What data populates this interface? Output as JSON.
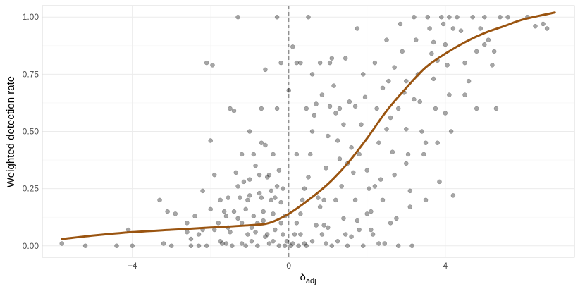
{
  "colors": {
    "background": "#ffffff",
    "panel_border": "#d9d9d9",
    "grid_major": "#ebebeb",
    "grid_minor": "#f5f5f5",
    "points": "#000000",
    "curve": "#9a5410",
    "reference_line": "#808080",
    "tick_text": "#4d4d4d"
  },
  "chart_data": {
    "type": "scatter",
    "title": "",
    "xlabel_main": "δ",
    "xlabel_sub": "adj",
    "ylabel": "Weighted detection rate",
    "xlim": [
      -6.3,
      7.3
    ],
    "ylim": [
      -0.05,
      1.05
    ],
    "x_ticks": [
      -4,
      0,
      4
    ],
    "x_tick_labels": [
      "−4",
      "0",
      "4"
    ],
    "y_ticks": [
      0,
      0.25,
      0.5,
      0.75,
      1
    ],
    "y_tick_labels": [
      "0.00",
      "0.25",
      "0.50",
      "0.75",
      "1.00"
    ],
    "grid": true,
    "reference_line": {
      "x": 0,
      "style": "dashed"
    },
    "scatter": {
      "opacity": 0.35,
      "points": [
        [
          -5.8,
          0.01
        ],
        [
          -5.2,
          0.0
        ],
        [
          -4.4,
          0.0
        ],
        [
          -4.0,
          0.0
        ],
        [
          -4.1,
          0.07
        ],
        [
          -3.2,
          0.01
        ],
        [
          -3.0,
          0.0
        ],
        [
          -3.3,
          0.2
        ],
        [
          -3.1,
          0.15
        ],
        [
          -2.9,
          0.14
        ],
        [
          -2.6,
          0.1
        ],
        [
          -2.4,
          0.13
        ],
        [
          -2.5,
          0.0
        ],
        [
          -2.5,
          0.03
        ],
        [
          -2.3,
          0.05
        ],
        [
          -2.2,
          0.07
        ],
        [
          -2.2,
          0.24
        ],
        [
          -2.0,
          0.46
        ],
        [
          -1.9,
          0.31
        ],
        [
          -2.1,
          0.8
        ],
        [
          -1.95,
          0.79
        ],
        [
          -2.1,
          0.0
        ],
        [
          -1.8,
          0.1
        ],
        [
          -1.75,
          0.2
        ],
        [
          -1.7,
          0.01
        ],
        [
          -1.65,
          0.15
        ],
        [
          -1.6,
          0.01
        ],
        [
          -1.55,
          0.21
        ],
        [
          -1.5,
          0.6
        ],
        [
          -1.4,
          0.59
        ],
        [
          -1.45,
          0.0
        ],
        [
          -1.35,
          0.32
        ],
        [
          -1.3,
          0.12
        ],
        [
          -1.2,
          0.1
        ],
        [
          -1.1,
          0.0
        ],
        [
          -1.25,
          0.21
        ],
        [
          -1.15,
          0.28
        ],
        [
          -1.05,
          0.05
        ],
        [
          -1.0,
          0.5
        ],
        [
          -0.95,
          0.02
        ],
        [
          -0.9,
          0.4
        ],
        [
          -0.85,
          0.35
        ],
        [
          -0.8,
          0.0
        ],
        [
          -0.75,
          0.23
        ],
        [
          -0.7,
          0.45
        ],
        [
          -0.65,
          0.15
        ],
        [
          -0.6,
          0.77
        ],
        [
          -0.55,
          0.3
        ],
        [
          -0.5,
          0.01
        ],
        [
          -0.45,
          0.2
        ],
        [
          -0.4,
          0.4
        ],
        [
          -0.35,
          0.07
        ],
        [
          -0.3,
          0.6
        ],
        [
          -0.25,
          0.0
        ],
        [
          -0.2,
          0.1
        ],
        [
          -0.15,
          0.25
        ],
        [
          -0.1,
          0.0
        ],
        [
          -0.05,
          0.02
        ],
        [
          -0.35,
          0.21
        ],
        [
          -0.5,
          0.31
        ],
        [
          -0.7,
          0.21
        ],
        [
          -0.9,
          0.13
        ],
        [
          -1.1,
          0.16
        ],
        [
          -1.3,
          0.26
        ],
        [
          -1.5,
          0.06
        ],
        [
          -0.6,
          0.04
        ],
        [
          -0.8,
          0.1
        ],
        [
          -0.4,
          0.14
        ],
        [
          -0.2,
          0.19
        ],
        [
          -1.6,
          0.13
        ],
        [
          -1.9,
          0.07
        ],
        [
          -2.3,
          0.0
        ],
        [
          -0.55,
          0.05
        ],
        [
          -1.0,
          0.29
        ],
        [
          -1.2,
          0.4
        ],
        [
          -0.3,
          0.26
        ],
        [
          -0.7,
          0.6
        ],
        [
          -0.3,
          1.0
        ],
        [
          -1.3,
          1.0
        ],
        [
          -0.2,
          0.8
        ],
        [
          -0.6,
          0.44
        ],
        [
          -1.0,
          0.22
        ],
        [
          -0.15,
          0.05
        ],
        [
          -2.6,
          0.06
        ],
        [
          -2.0,
          0.16
        ],
        [
          -1.55,
          0.08
        ],
        [
          -0.85,
          0.06
        ],
        [
          -0.45,
          0.24
        ],
        [
          -0.25,
          0.33
        ],
        [
          -1.75,
          0.02
        ],
        [
          -1.2,
          0.01
        ],
        [
          -0.95,
          0.08
        ],
        [
          -0.65,
          0.11
        ],
        [
          -0.4,
          0.02
        ],
        [
          -0.1,
          0.13
        ],
        [
          -1.4,
          0.15
        ],
        [
          -1.05,
          0.2
        ],
        [
          -0.75,
          0.31
        ],
        [
          0.0,
          0.68
        ],
        [
          0.1,
          0.87
        ],
        [
          0.2,
          0.8
        ],
        [
          0.3,
          0.8
        ],
        [
          0.5,
          1.0
        ],
        [
          0.6,
          0.75
        ],
        [
          0.8,
          0.8
        ],
        [
          0.05,
          0.0
        ],
        [
          0.1,
          0.01
        ],
        [
          0.15,
          0.05
        ],
        [
          0.2,
          0.1
        ],
        [
          0.25,
          0.0
        ],
        [
          0.3,
          0.14
        ],
        [
          0.35,
          0.2
        ],
        [
          0.4,
          0.25
        ],
        [
          0.45,
          0.0
        ],
        [
          0.5,
          0.3
        ],
        [
          0.55,
          0.4
        ],
        [
          0.6,
          0.5
        ],
        [
          0.65,
          0.57
        ],
        [
          0.7,
          0.62
        ],
        [
          0.75,
          0.21
        ],
        [
          0.8,
          0.17
        ],
        [
          0.85,
          0.05
        ],
        [
          0.9,
          0.2
        ],
        [
          0.95,
          0.34
        ],
        [
          1.0,
          0.48
        ],
        [
          1.05,
          0.61
        ],
        [
          1.1,
          0.82
        ],
        [
          1.15,
          0.7
        ],
        [
          1.2,
          0.58
        ],
        [
          1.25,
          0.46
        ],
        [
          1.3,
          0.38
        ],
        [
          1.35,
          0.26
        ],
        [
          1.4,
          0.12
        ],
        [
          1.45,
          0.05
        ],
        [
          1.5,
          0.0
        ],
        [
          1.55,
          0.63
        ],
        [
          1.6,
          0.43
        ],
        [
          1.65,
          0.32
        ],
        [
          1.7,
          0.2
        ],
        [
          1.75,
          0.11
        ],
        [
          1.8,
          0.07
        ],
        [
          1.85,
          0.53
        ],
        [
          1.9,
          0.75
        ],
        [
          1.95,
          0.65
        ],
        [
          2.0,
          0.33
        ],
        [
          2.05,
          0.25
        ],
        [
          2.1,
          0.15
        ],
        [
          2.15,
          0.05
        ],
        [
          2.2,
          0.8
        ],
        [
          2.25,
          0.6
        ],
        [
          2.3,
          0.45
        ],
        [
          2.35,
          0.29
        ],
        [
          2.4,
          0.2
        ],
        [
          2.45,
          0.01
        ],
        [
          2.5,
          0.9
        ],
        [
          2.55,
          0.72
        ],
        [
          2.6,
          0.56
        ],
        [
          2.65,
          0.41
        ],
        [
          2.7,
          0.31
        ],
        [
          2.75,
          0.12
        ],
        [
          2.8,
          0.0
        ],
        [
          2.85,
          0.97
        ],
        [
          2.9,
          0.85
        ],
        [
          2.95,
          0.67
        ],
        [
          3.0,
          0.51
        ],
        [
          3.05,
          0.4
        ],
        [
          3.1,
          0.24
        ],
        [
          3.15,
          0.0
        ],
        [
          3.2,
          1.0
        ],
        [
          3.25,
          0.9
        ],
        [
          3.3,
          0.75
        ],
        [
          3.35,
          0.63
        ],
        [
          3.4,
          0.5
        ],
        [
          3.45,
          0.4
        ],
        [
          3.5,
          0.2
        ],
        [
          3.55,
          1.0
        ],
        [
          3.6,
          0.95
        ],
        [
          3.65,
          0.84
        ],
        [
          3.7,
          0.73
        ],
        [
          3.75,
          0.6
        ],
        [
          3.8,
          0.45
        ],
        [
          3.85,
          0.28
        ],
        [
          3.9,
          1.0
        ],
        [
          3.95,
          0.97
        ],
        [
          4.0,
          0.88
        ],
        [
          4.05,
          0.79
        ],
        [
          4.1,
          0.66
        ],
        [
          4.15,
          0.5
        ],
        [
          4.2,
          0.22
        ],
        [
          4.3,
          1.0
        ],
        [
          4.4,
          0.94
        ],
        [
          4.5,
          0.8
        ],
        [
          4.6,
          0.72
        ],
        [
          4.7,
          1.0
        ],
        [
          4.8,
          0.85
        ],
        [
          4.9,
          0.95
        ],
        [
          5.0,
          0.88
        ],
        [
          5.1,
          0.9
        ],
        [
          5.2,
          0.79
        ],
        [
          5.3,
          0.6
        ],
        [
          5.4,
          1.0
        ],
        [
          6.3,
          0.96
        ],
        [
          6.1,
          1.0
        ],
        [
          6.5,
          0.97
        ],
        [
          6.6,
          0.95
        ],
        [
          4.8,
          0.6
        ],
        [
          5.25,
          0.85
        ],
        [
          5.6,
          1.0
        ],
        [
          4.0,
          0.58
        ],
        [
          3.0,
          0.36
        ],
        [
          2.0,
          0.14
        ],
        [
          1.0,
          0.08
        ],
        [
          0.6,
          0.02
        ],
        [
          0.3,
          0.05
        ],
        [
          2.5,
          0.51
        ],
        [
          1.5,
          0.36
        ],
        [
          0.9,
          0.09
        ],
        [
          3.5,
          0.45
        ],
        [
          4.5,
          0.66
        ],
        [
          2.8,
          0.6
        ],
        [
          1.8,
          0.4
        ],
        [
          1.2,
          0.2
        ],
        [
          0.7,
          0.09
        ],
        [
          0.4,
          0.01
        ],
        [
          2.2,
          0.26
        ],
        [
          1.4,
          0.53
        ],
        [
          2.7,
          0.78
        ],
        [
          3.2,
          0.64
        ],
        [
          3.8,
          0.81
        ],
        [
          4.2,
          0.95
        ],
        [
          5.0,
          1.0
        ],
        [
          1.1,
          0.0
        ],
        [
          1.9,
          0.0
        ],
        [
          2.3,
          0.01
        ],
        [
          0.95,
          0.01
        ],
        [
          1.25,
          0.02
        ],
        [
          1.6,
          0.04
        ],
        [
          2.1,
          0.07
        ],
        [
          2.6,
          0.1
        ],
        [
          3.1,
          0.17
        ],
        [
          1.7,
          0.61
        ],
        [
          2.4,
          0.69
        ],
        [
          3.0,
          0.72
        ],
        [
          3.7,
          0.89
        ],
        [
          4.1,
          1.0
        ],
        [
          0.2,
          0.4
        ],
        [
          0.45,
          0.6
        ],
        [
          0.85,
          0.66
        ],
        [
          1.3,
          0.6
        ],
        [
          1.05,
          0.8
        ],
        [
          1.45,
          0.82
        ],
        [
          1.75,
          0.95
        ]
      ]
    },
    "trend_curve": {
      "name": "",
      "points": [
        [
          -5.8,
          0.03
        ],
        [
          -5.0,
          0.045
        ],
        [
          -4.0,
          0.06
        ],
        [
          -3.0,
          0.07
        ],
        [
          -2.0,
          0.08
        ],
        [
          -1.0,
          0.09
        ],
        [
          -0.5,
          0.1
        ],
        [
          0.0,
          0.14
        ],
        [
          0.5,
          0.2
        ],
        [
          1.0,
          0.27
        ],
        [
          1.5,
          0.36
        ],
        [
          2.0,
          0.47
        ],
        [
          2.5,
          0.59
        ],
        [
          3.0,
          0.69
        ],
        [
          3.5,
          0.78
        ],
        [
          4.0,
          0.84
        ],
        [
          4.5,
          0.89
        ],
        [
          5.0,
          0.93
        ],
        [
          5.5,
          0.96
        ],
        [
          6.0,
          0.99
        ],
        [
          6.8,
          1.02
        ]
      ]
    }
  }
}
